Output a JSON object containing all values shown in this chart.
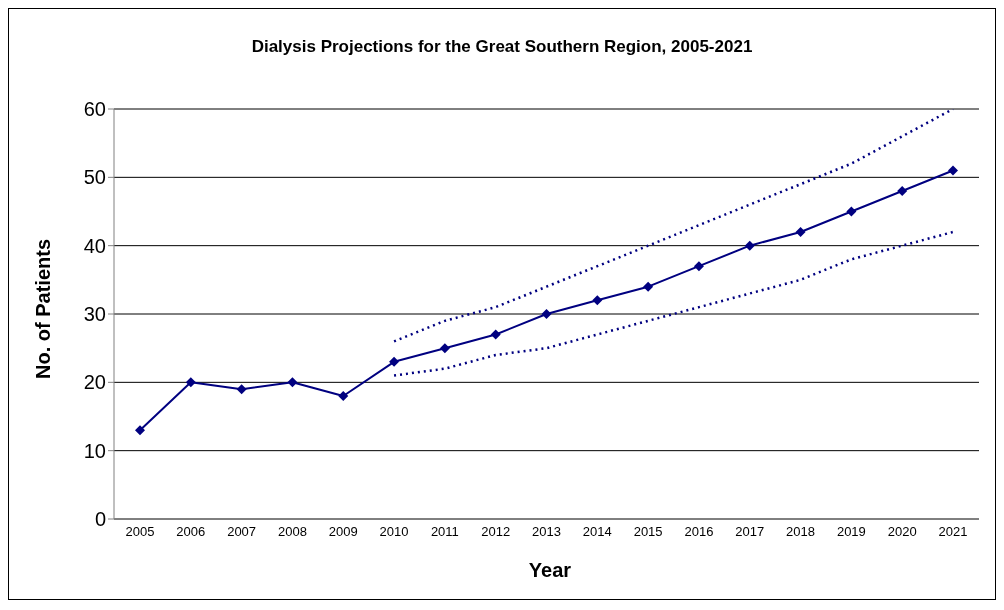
{
  "chart_data": {
    "type": "line",
    "title": "Dialysis Projections for the Great Southern Region, 2005-2021",
    "xlabel": "Year",
    "ylabel": "No. of Patients",
    "categories": [
      "2005",
      "2006",
      "2007",
      "2008",
      "2009",
      "2010",
      "2011",
      "2012",
      "2013",
      "2014",
      "2015",
      "2016",
      "2017",
      "2018",
      "2019",
      "2020",
      "2021"
    ],
    "series": [
      {
        "color": "#000080",
        "marker": "diamond",
        "line_style": "solid",
        "values": [
          13,
          20,
          19,
          20,
          18,
          23,
          25,
          27,
          30,
          32,
          34,
          37,
          40,
          42,
          45,
          48,
          51
        ]
      },
      {
        "color": "#000080",
        "marker": "none",
        "line_style": "dotted",
        "values": [
          null,
          null,
          null,
          null,
          null,
          26,
          29,
          31,
          34,
          37,
          40,
          43,
          46,
          49,
          52,
          56,
          60
        ]
      },
      {
        "color": "#000080",
        "marker": "none",
        "line_style": "dotted",
        "values": [
          null,
          null,
          null,
          null,
          null,
          21,
          22,
          24,
          25,
          27,
          29,
          31,
          33,
          35,
          38,
          40,
          42
        ]
      }
    ],
    "ylim": [
      0,
      60
    ],
    "yticks": [
      0,
      10,
      20,
      30,
      40,
      50,
      60
    ],
    "grid": "y"
  }
}
